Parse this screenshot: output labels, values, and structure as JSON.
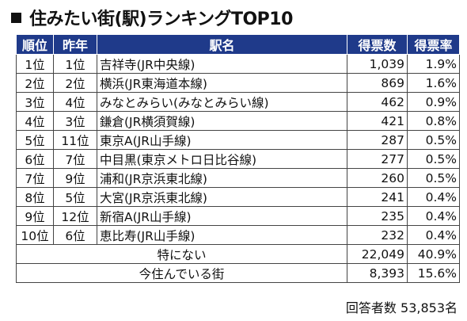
{
  "title": "住みたい街(駅)ランキングTOP10",
  "headers": {
    "rank": "順位",
    "prev": "昨年",
    "name": "駅名",
    "votes": "得票数",
    "rate": "得票率"
  },
  "rows": [
    {
      "rank": "1位",
      "prev": "1位",
      "name": "吉祥寺(JR中央線)",
      "votes": "1,039",
      "rate": "1.9%"
    },
    {
      "rank": "2位",
      "prev": "2位",
      "name": "横浜(JR東海道本線)",
      "votes": "869",
      "rate": "1.6%"
    },
    {
      "rank": "3位",
      "prev": "4位",
      "name": "みなとみらい(みなとみらい線)",
      "votes": "462",
      "rate": "0.9%"
    },
    {
      "rank": "4位",
      "prev": "3位",
      "name": "鎌倉(JR横須賀線)",
      "votes": "421",
      "rate": "0.8%"
    },
    {
      "rank": "5位",
      "prev": "11位",
      "name": "東京A(JR山手線)",
      "votes": "287",
      "rate": "0.5%"
    },
    {
      "rank": "6位",
      "prev": "7位",
      "name": "中目黒(東京メトロ日比谷線)",
      "votes": "277",
      "rate": "0.5%"
    },
    {
      "rank": "7位",
      "prev": "9位",
      "name": "浦和(JR京浜東北線)",
      "votes": "260",
      "rate": "0.5%"
    },
    {
      "rank": "8位",
      "prev": "5位",
      "name": "大宮(JR京浜東北線)",
      "votes": "241",
      "rate": "0.4%"
    },
    {
      "rank": "9位",
      "prev": "12位",
      "name": "新宿A(JR山手線)",
      "votes": "235",
      "rate": "0.4%"
    },
    {
      "rank": "10位",
      "prev": "6位",
      "name": "恵比寿(JR山手線)",
      "votes": "232",
      "rate": "0.4%"
    }
  ],
  "summary": [
    {
      "label": "特にない",
      "votes": "22,049",
      "rate": "40.9%"
    },
    {
      "label": "今住んでいる街",
      "votes": "8,393",
      "rate": "15.6%"
    }
  ],
  "respondents": "回答者数 53,853名",
  "colors": {
    "header_bg": "#1f3a8a",
    "header_text": "#ffffff",
    "border": "#444444"
  }
}
